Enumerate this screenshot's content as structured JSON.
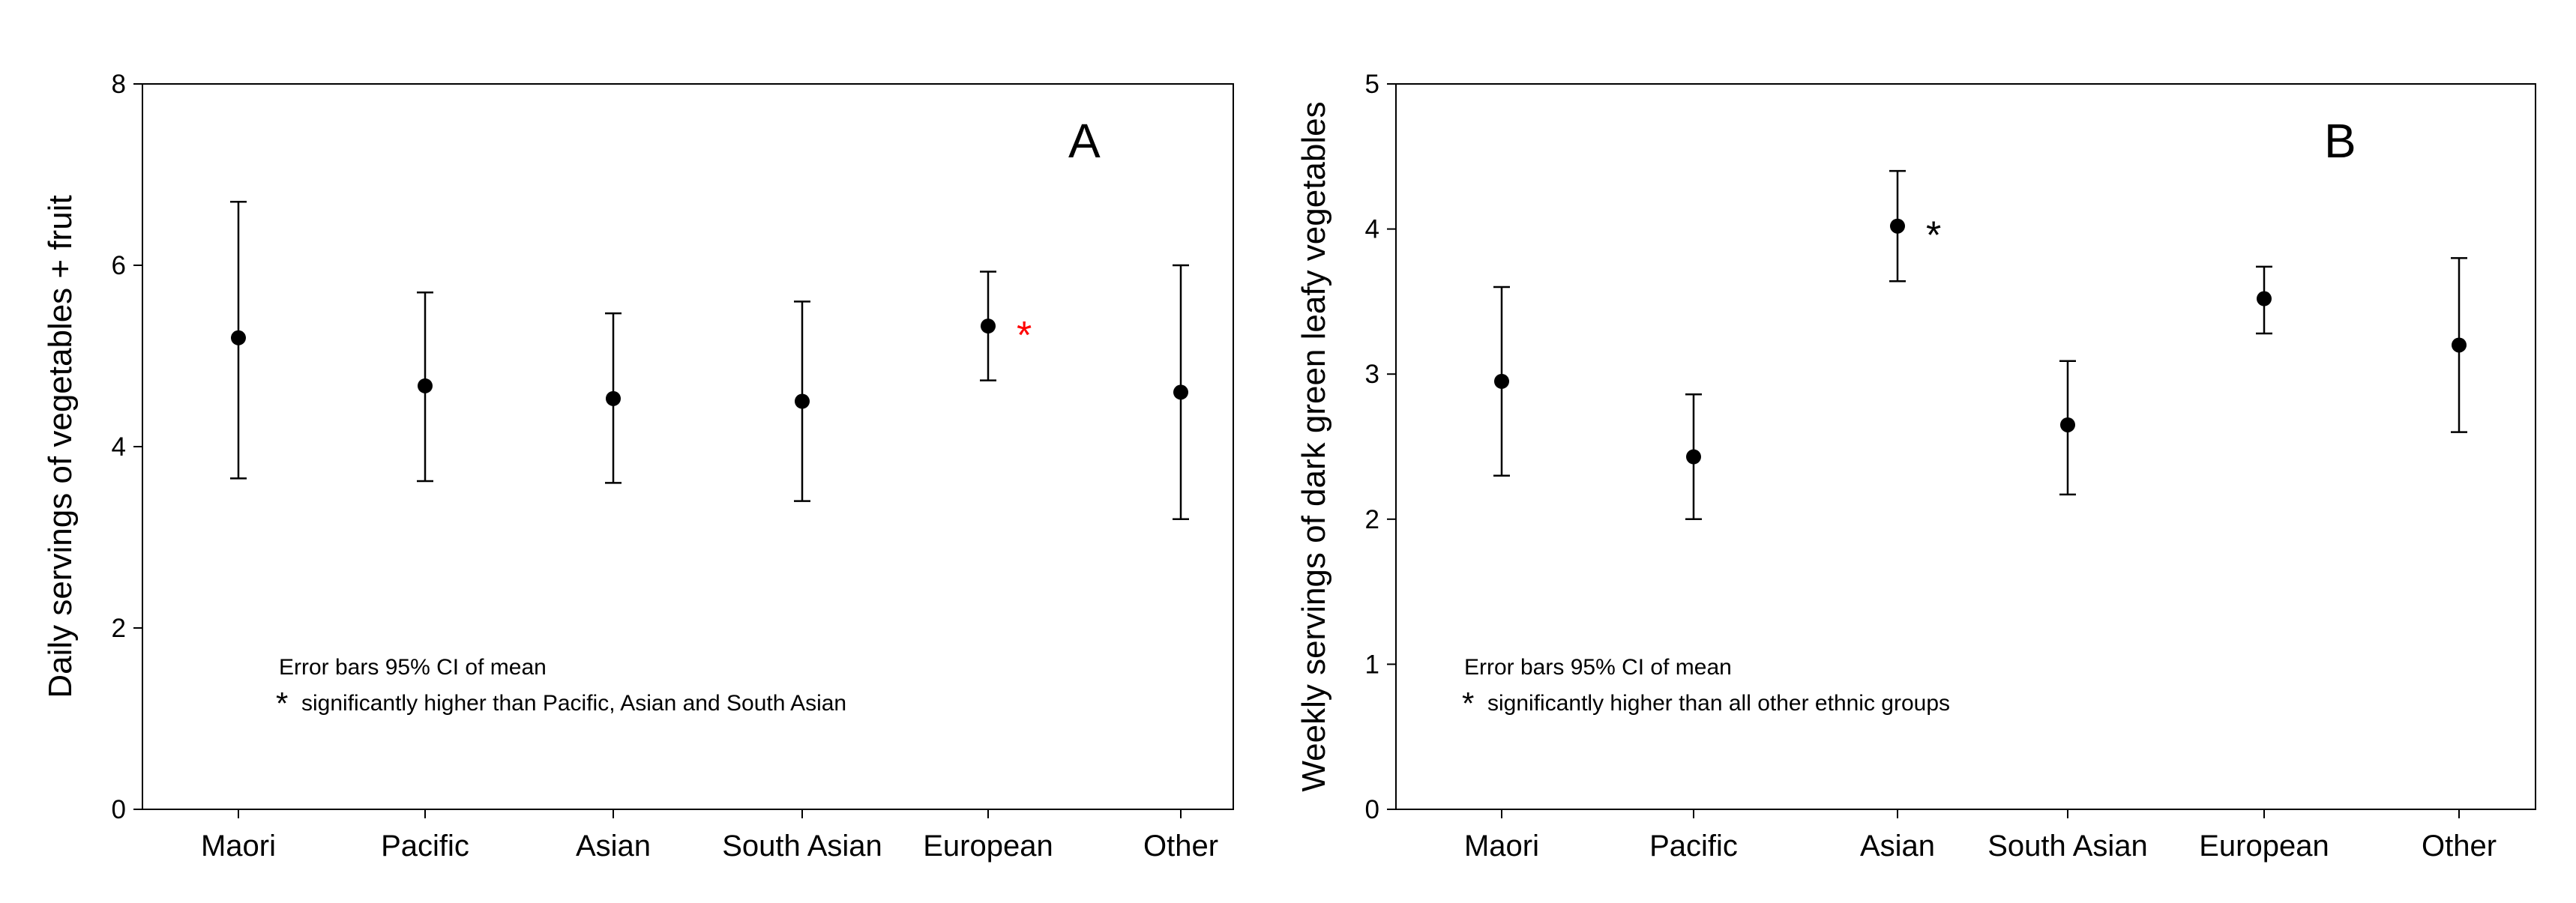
{
  "chart_data": [
    {
      "type": "scatter",
      "panel": "A",
      "ylabel": "Daily servings of vegetables + fruit",
      "xlabel": "",
      "categories": [
        "Maori",
        "Pacific",
        "Asian",
        "South Asian",
        "European",
        "Other"
      ],
      "series": [
        {
          "values": [
            5.2,
            4.67,
            4.53,
            4.5,
            5.33,
            4.6
          ],
          "ci_lower": [
            3.65,
            3.62,
            3.6,
            3.4,
            4.73,
            3.2
          ],
          "ci_upper": [
            6.7,
            5.7,
            5.47,
            5.6,
            5.93,
            6.0
          ],
          "color": "#000000"
        }
      ],
      "ylim": [
        0,
        8
      ],
      "yticks": [
        "0",
        "2",
        "4",
        "6",
        "8"
      ],
      "note_line1": "Error bars 95% CI of mean",
      "note_star": "*",
      "note_line2": "significantly higher than Pacific, Asian and South Asian",
      "significance_marker": {
        "category": "European",
        "symbol": "*",
        "color": "#ff0000"
      },
      "grid": false
    },
    {
      "type": "scatter",
      "panel": "B",
      "ylabel": "Weekly servings of dark green leafy vegetables",
      "xlabel": "",
      "categories": [
        "Maori",
        "Pacific",
        "Asian",
        "South Asian",
        "European",
        "Other"
      ],
      "series": [
        {
          "values": [
            2.95,
            2.43,
            4.02,
            2.65,
            3.52,
            3.2
          ],
          "ci_lower": [
            2.3,
            2.0,
            3.64,
            2.17,
            3.28,
            2.6
          ],
          "ci_upper": [
            3.6,
            2.86,
            4.4,
            3.09,
            3.74,
            3.8
          ],
          "color": "#000000"
        }
      ],
      "ylim": [
        0,
        5
      ],
      "yticks": [
        "0",
        "1",
        "2",
        "3",
        "4",
        "5"
      ],
      "note_line1": "Error bars 95% CI of mean",
      "note_star": "*",
      "note_line2": "significantly higher than all other ethnic groups",
      "significance_marker": {
        "category": "Asian",
        "symbol": "*",
        "color": "#000000"
      },
      "grid": false
    }
  ]
}
